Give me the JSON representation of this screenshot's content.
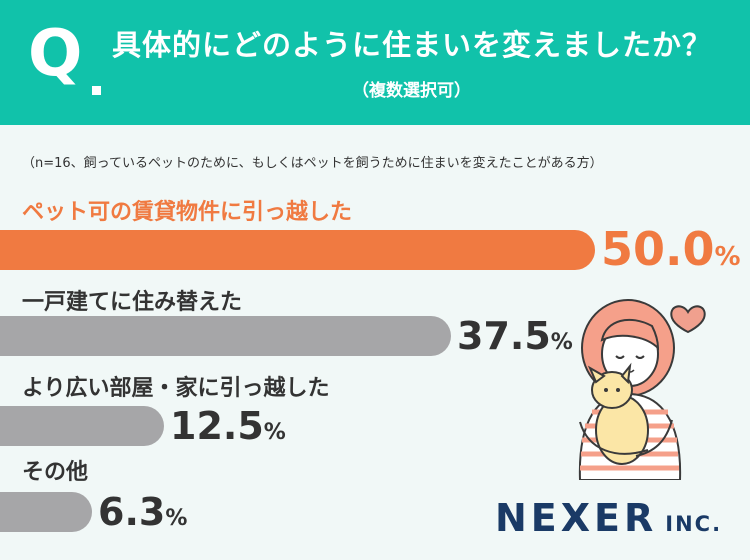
{
  "header": {
    "q_mark": "Q",
    "question": "具体的にどのように住まいを変えましたか？",
    "sub": "（複数選択可）"
  },
  "note": "（n=16、飼っているペットのために、もしくはペットを飼うために住まいを変えたことがある方）",
  "chart_data": {
    "type": "bar",
    "orientation": "horizontal",
    "categories": [
      "ペット可の賃貸物件に引っ越した",
      "一戸建てに住み替えた",
      "より広い部屋・家に引っ越した",
      "その他"
    ],
    "values": [
      50.0,
      37.5,
      12.5,
      6.3
    ],
    "value_labels": [
      "50.0",
      "37.5",
      "12.5",
      "6.3"
    ],
    "unit": "%",
    "xlim": [
      0,
      100
    ],
    "colors": {
      "highlight": "#f07a41",
      "default": "#a6a6a8"
    }
  },
  "colors": {
    "header": "#11c2aa",
    "background": "#f1f8f7",
    "logo": "#1a3a66"
  },
  "logo": {
    "main": "NEXER",
    "suffix": "INC."
  }
}
